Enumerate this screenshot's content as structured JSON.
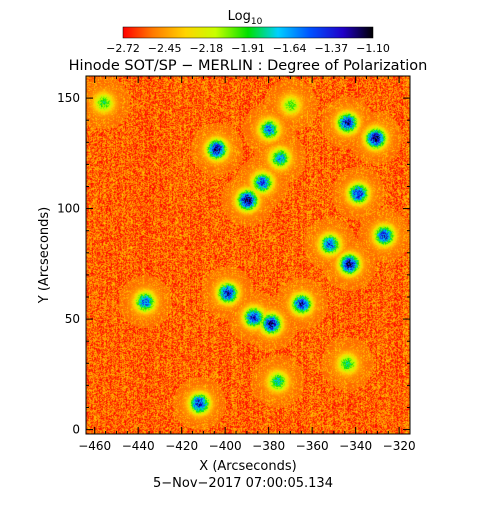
{
  "colorbar": {
    "label": "Log",
    "label_sub": "10",
    "tick_labels": [
      "−2.72",
      "−2.45",
      "−2.18",
      "−1.91",
      "−1.64",
      "−1.37",
      "−1.10"
    ],
    "range": [
      -2.72,
      -1.1
    ],
    "colors": [
      "#ff0000",
      "#ff7a00",
      "#ffd400",
      "#c8ff00",
      "#00e000",
      "#00d0ff",
      "#0050ff",
      "#2000c8",
      "#000000"
    ]
  },
  "chart_data": {
    "type": "heatmap",
    "title": "Hinode SOT/SP − MERLIN : Degree of Polarization",
    "xlabel": "X (Arcseconds)",
    "ylabel": "Y (Arcseconds)",
    "date_label": "5−Nov−2017 07:00:05.134",
    "xlim": [
      -464,
      -315
    ],
    "ylim": [
      -2,
      160
    ],
    "x_ticks": [
      -460,
      -440,
      -420,
      -400,
      -380,
      -360,
      -340,
      -320
    ],
    "x_tick_labels": [
      "−460",
      "−440",
      "−420",
      "−400",
      "−380",
      "−360",
      "−340",
      "−320"
    ],
    "y_ticks": [
      0,
      50,
      100,
      150
    ],
    "y_tick_labels": [
      "0",
      "50",
      "100",
      "150"
    ],
    "value_range": [
      -2.72,
      -1.1
    ],
    "background_level": -2.55,
    "features": [
      {
        "x": -344,
        "y": 139,
        "level": -1.3
      },
      {
        "x": -331,
        "y": 132,
        "level": -1.2
      },
      {
        "x": -380,
        "y": 136,
        "level": -1.55
      },
      {
        "x": -370,
        "y": 147,
        "level": -1.95
      },
      {
        "x": -404,
        "y": 127,
        "level": -1.25
      },
      {
        "x": -390,
        "y": 104,
        "level": -1.15
      },
      {
        "x": -383,
        "y": 112,
        "level": -1.45
      },
      {
        "x": -375,
        "y": 123,
        "level": -1.6
      },
      {
        "x": -339,
        "y": 107,
        "level": -1.35
      },
      {
        "x": -327,
        "y": 88,
        "level": -1.4
      },
      {
        "x": -343,
        "y": 75,
        "level": -1.2
      },
      {
        "x": -352,
        "y": 84,
        "level": -1.45
      },
      {
        "x": -365,
        "y": 57,
        "level": -1.35
      },
      {
        "x": -379,
        "y": 48,
        "level": -1.25
      },
      {
        "x": -387,
        "y": 51,
        "level": -1.35
      },
      {
        "x": -399,
        "y": 62,
        "level": -1.3
      },
      {
        "x": -437,
        "y": 58,
        "level": -1.5
      },
      {
        "x": -456,
        "y": 148,
        "level": -1.9
      },
      {
        "x": -412,
        "y": 12,
        "level": -1.35
      },
      {
        "x": -376,
        "y": 22,
        "level": -1.75
      },
      {
        "x": -344,
        "y": 30,
        "level": -1.85
      }
    ]
  }
}
